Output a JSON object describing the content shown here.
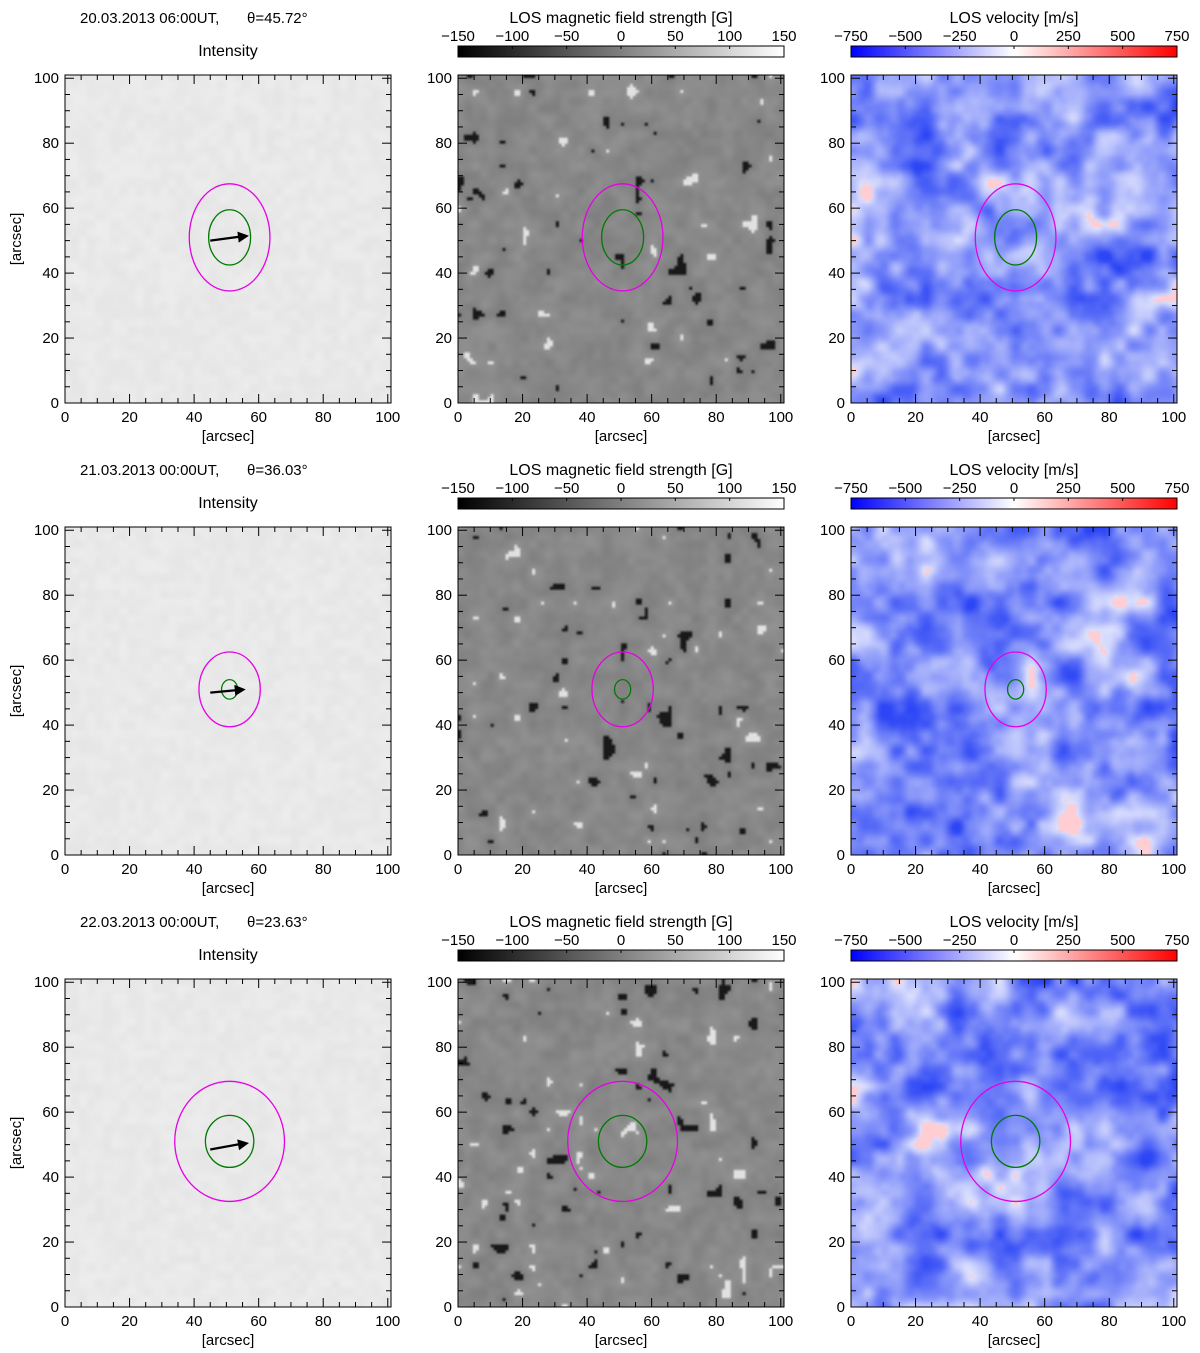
{
  "figure": {
    "rows": [
      {
        "timestamp": "20.03.2013 06:00UT,",
        "theta": "θ=45.72°",
        "inner_contour_rx": 6.5,
        "inner_contour_ry": 8.5,
        "outer_contour_rx": 12.5,
        "outer_contour_ry": 16.5,
        "arrow": {
          "x1": 45,
          "y1": 50,
          "x2": 57,
          "y2": 51.5
        },
        "mag_seed": 11,
        "vel_seed": 21,
        "int_seed": 31
      },
      {
        "timestamp": "21.03.2013 00:00UT,",
        "theta": "θ=36.03°",
        "inner_contour_rx": 2.5,
        "inner_contour_ry": 3,
        "outer_contour_rx": 9.5,
        "outer_contour_ry": 11.5,
        "arrow": {
          "x1": 45,
          "y1": 50,
          "x2": 56,
          "y2": 51
        },
        "mag_seed": 12,
        "vel_seed": 22,
        "int_seed": 32
      },
      {
        "timestamp": "22.03.2013 00:00UT,",
        "theta": "θ=23.63°",
        "inner_contour_rx": 7.5,
        "inner_contour_ry": 8,
        "outer_contour_rx": 17,
        "outer_contour_ry": 18.5,
        "arrow": {
          "x1": 45,
          "y1": 48.5,
          "x2": 57,
          "y2": 50.5
        },
        "mag_seed": 13,
        "vel_seed": 23,
        "int_seed": 33
      }
    ],
    "panel_titles": {
      "intensity": "Intensity",
      "magnetic": "LOS magnetic field strength [G]",
      "velocity": "LOS velocity [m/s]"
    },
    "axis_label": "[arcsec]",
    "tick_labels": [
      "0",
      "20",
      "40",
      "60",
      "80",
      "100"
    ],
    "magnetic_colorbar_ticks": [
      "−150",
      "−100",
      "−50",
      "0",
      "50",
      "100",
      "150"
    ],
    "velocity_colorbar_ticks": [
      "−750",
      "−500",
      "−250",
      "0",
      "250",
      "500",
      "750"
    ],
    "colors": {
      "inner_contour": "#007a00",
      "outer_contour": "#e600e6",
      "arrow": "#000000",
      "velocity_negative": "#0000ff",
      "velocity_positive": "#ff0000"
    }
  },
  "chart_data": [
    {
      "type": "heatmap",
      "title": "Intensity",
      "xlabel": "[arcsec]",
      "ylabel": "[arcsec]",
      "xlim": [
        0,
        101
      ],
      "ylim": [
        0,
        101
      ],
      "annotation": "20.03.2013 06:00UT, θ=45.72°"
    },
    {
      "type": "heatmap",
      "title": "LOS magnetic field strength [G]",
      "xlabel": "[arcsec]",
      "xlim": [
        0,
        101
      ],
      "ylim": [
        0,
        101
      ],
      "colorbar_range": [
        -150,
        150
      ]
    },
    {
      "type": "heatmap",
      "title": "LOS velocity [m/s]",
      "xlabel": "[arcsec]",
      "xlim": [
        0,
        101
      ],
      "ylim": [
        0,
        101
      ],
      "colorbar_range": [
        -750,
        750
      ]
    },
    {
      "type": "heatmap",
      "title": "Intensity",
      "xlabel": "[arcsec]",
      "ylabel": "[arcsec]",
      "xlim": [
        0,
        101
      ],
      "ylim": [
        0,
        101
      ],
      "annotation": "21.03.2013 00:00UT, θ=36.03°"
    },
    {
      "type": "heatmap",
      "title": "LOS magnetic field strength [G]",
      "xlabel": "[arcsec]",
      "xlim": [
        0,
        101
      ],
      "ylim": [
        0,
        101
      ],
      "colorbar_range": [
        -150,
        150
      ]
    },
    {
      "type": "heatmap",
      "title": "LOS velocity [m/s]",
      "xlabel": "[arcsec]",
      "xlim": [
        0,
        101
      ],
      "ylim": [
        0,
        101
      ],
      "colorbar_range": [
        -750,
        750
      ]
    },
    {
      "type": "heatmap",
      "title": "Intensity",
      "xlabel": "[arcsec]",
      "ylabel": "[arcsec]",
      "xlim": [
        0,
        101
      ],
      "ylim": [
        0,
        101
      ],
      "annotation": "22.03.2013 00:00UT, θ=23.63°"
    },
    {
      "type": "heatmap",
      "title": "LOS magnetic field strength [G]",
      "xlabel": "[arcsec]",
      "xlim": [
        0,
        101
      ],
      "ylim": [
        0,
        101
      ],
      "colorbar_range": [
        -150,
        150
      ]
    },
    {
      "type": "heatmap",
      "title": "LOS velocity [m/s]",
      "xlabel": "[arcsec]",
      "xlim": [
        0,
        101
      ],
      "ylim": [
        0,
        101
      ],
      "colorbar_range": [
        -750,
        750
      ]
    }
  ]
}
